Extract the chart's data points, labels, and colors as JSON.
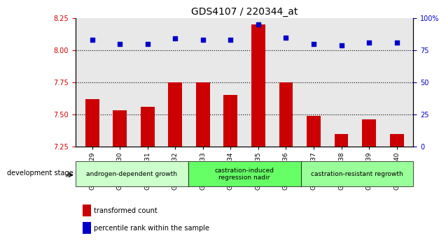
{
  "title": "GDS4107 / 220344_at",
  "samples": [
    "GSM544229",
    "GSM544230",
    "GSM544231",
    "GSM544232",
    "GSM544233",
    "GSM544234",
    "GSM544235",
    "GSM544236",
    "GSM544237",
    "GSM544238",
    "GSM544239",
    "GSM544240"
  ],
  "bar_values": [
    7.62,
    7.53,
    7.56,
    7.75,
    7.75,
    7.65,
    8.2,
    7.75,
    7.49,
    7.35,
    7.46,
    7.35
  ],
  "dot_values": [
    83,
    80,
    80,
    84,
    83,
    83,
    95,
    85,
    80,
    79,
    81,
    81
  ],
  "ylim_left": [
    7.25,
    8.25
  ],
  "ylim_right": [
    0,
    100
  ],
  "yticks_left": [
    7.25,
    7.5,
    7.75,
    8.0,
    8.25
  ],
  "yticks_right": [
    0,
    25,
    50,
    75,
    100
  ],
  "bar_color": "#cc0000",
  "dot_color": "#0000cc",
  "grid_color": "#000000",
  "bg_color": "#e8e8e8",
  "groups": [
    {
      "label": "androgen-dependent growth",
      "start": 0,
      "end": 3,
      "color": "#ccffcc"
    },
    {
      "label": "castration-induced\nregression nadir",
      "start": 4,
      "end": 7,
      "color": "#66ff66"
    },
    {
      "label": "castration-resistant regrowth",
      "start": 8,
      "end": 11,
      "color": "#99ff99"
    }
  ],
  "dev_stage_label": "development stage",
  "legend_bar": "transformed count",
  "legend_dot": "percentile rank within the sample"
}
